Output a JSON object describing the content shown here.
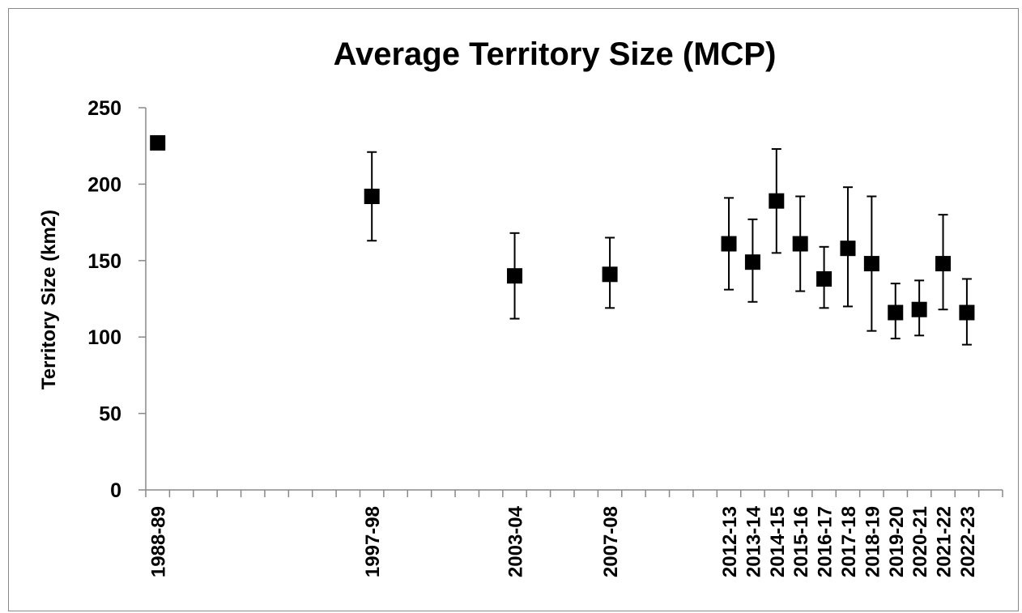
{
  "chart_data": {
    "type": "scatter",
    "title": "Average Territory Size (MCP)",
    "xlabel": "",
    "ylabel": "Territory Size (km2)",
    "ylim": [
      0,
      250
    ],
    "yticks": [
      0,
      50,
      100,
      150,
      200,
      250
    ],
    "x_start_year": 1988,
    "x_end_year": 2023,
    "grid": false,
    "legend": "none",
    "marker": "square",
    "marker_color": "#000000",
    "points": [
      {
        "label": "1988-89",
        "year": 1988,
        "y": 227,
        "err_low": null,
        "err_high": null
      },
      {
        "label": "1997-98",
        "year": 1997,
        "y": 192,
        "err_low": 163,
        "err_high": 221
      },
      {
        "label": "2003-04",
        "year": 2003,
        "y": 140,
        "err_low": 112,
        "err_high": 168
      },
      {
        "label": "2007-08",
        "year": 2007,
        "y": 141,
        "err_low": 119,
        "err_high": 165
      },
      {
        "label": "2012-13",
        "year": 2012,
        "y": 161,
        "err_low": 131,
        "err_high": 191
      },
      {
        "label": "2013-14",
        "year": 2013,
        "y": 149,
        "err_low": 123,
        "err_high": 177
      },
      {
        "label": "2014-15",
        "year": 2014,
        "y": 189,
        "err_low": 155,
        "err_high": 223
      },
      {
        "label": "2015-16",
        "year": 2015,
        "y": 161,
        "err_low": 130,
        "err_high": 192
      },
      {
        "label": "2016-17",
        "year": 2016,
        "y": 138,
        "err_low": 119,
        "err_high": 159
      },
      {
        "label": "2017-18",
        "year": 2017,
        "y": 158,
        "err_low": 120,
        "err_high": 198
      },
      {
        "label": "2018-19",
        "year": 2018,
        "y": 148,
        "err_low": 104,
        "err_high": 192
      },
      {
        "label": "2019-20",
        "year": 2019,
        "y": 116,
        "err_low": 99,
        "err_high": 135
      },
      {
        "label": "2020-21",
        "year": 2020,
        "y": 118,
        "err_low": 101,
        "err_high": 137
      },
      {
        "label": "2021-22",
        "year": 2021,
        "y": 148,
        "err_low": 118,
        "err_high": 180
      },
      {
        "label": "2022-23",
        "year": 2022,
        "y": 116,
        "err_low": 95,
        "err_high": 138
      }
    ]
  }
}
